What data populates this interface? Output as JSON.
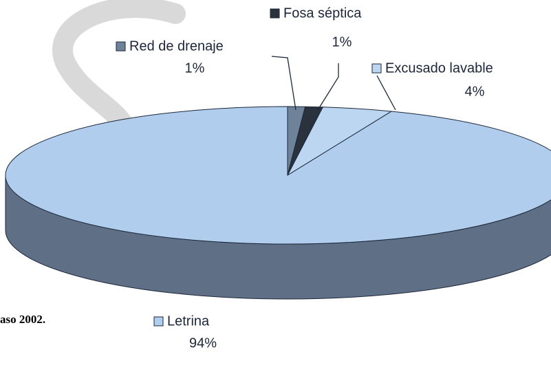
{
  "chart_data": {
    "type": "pie",
    "categories": [
      "Red de drenaje",
      "Fosa séptica",
      "Excusado lavable",
      "Letrina"
    ],
    "values": [
      1,
      1,
      4,
      94
    ],
    "value_labels": [
      "1%",
      "1%",
      "4%",
      "94%"
    ],
    "colors": [
      "#6e8299",
      "#2a323d",
      "#bcd6f2",
      "#b0cdee"
    ],
    "three_d": true,
    "caption": "aso 2002."
  }
}
